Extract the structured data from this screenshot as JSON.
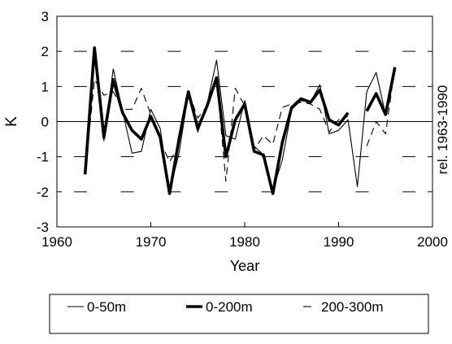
{
  "chart_data": {
    "type": "line",
    "xlabel": "Year",
    "ylabel": "K",
    "right_label": "rel. 1963-1990",
    "xlim": [
      1960,
      2000
    ],
    "ylim": [
      -3,
      3
    ],
    "x_ticks": [
      "1960",
      "1970",
      "1980",
      "1990",
      "2000"
    ],
    "y_ticks": [
      "-3",
      "-2",
      "-1",
      "0",
      "1",
      "2",
      "3"
    ],
    "grid_dash_levels": [
      -2,
      -1,
      1,
      2
    ],
    "zero_line": true,
    "legend_position": "bottom",
    "series": [
      {
        "name": "0-50m",
        "style": "thin",
        "points": [
          [
            1963,
            -1.5
          ],
          [
            1964,
            1.85
          ],
          [
            1965,
            -0.55
          ],
          [
            1966,
            1.5
          ],
          [
            1967,
            0.3
          ],
          [
            1968,
            -0.9
          ],
          [
            1969,
            -0.85
          ],
          [
            1970,
            0.35
          ],
          [
            1971,
            -0.2
          ],
          [
            1972,
            -2.0
          ],
          [
            1973,
            -0.9
          ],
          [
            1974,
            0.8
          ],
          [
            1975,
            -0.3
          ],
          [
            1976,
            0.5
          ],
          [
            1977,
            1.75
          ],
          [
            1978,
            -0.4
          ],
          [
            1979,
            -0.5
          ],
          [
            1980,
            0.6
          ],
          [
            1981,
            -0.7
          ],
          [
            1982,
            -0.95
          ],
          [
            1983,
            -1.95
          ],
          [
            1984,
            -1.1
          ],
          [
            1985,
            0.35
          ],
          [
            1986,
            0.6
          ],
          [
            1987,
            0.55
          ],
          [
            1988,
            1.05
          ],
          [
            1989,
            -0.35
          ],
          [
            1990,
            -0.25
          ],
          [
            1991,
            0.05
          ],
          [
            1992,
            -1.85
          ],
          [
            1993,
            0.85
          ],
          [
            1994,
            1.4
          ],
          [
            1995,
            0.2
          ],
          [
            1996,
            1.55
          ]
        ]
      },
      {
        "name": "0-200m",
        "style": "thick",
        "points": [
          [
            1963,
            -1.5
          ],
          [
            1964,
            2.1
          ],
          [
            1965,
            -0.45
          ],
          [
            1966,
            1.2
          ],
          [
            1967,
            0.25
          ],
          [
            1968,
            -0.25
          ],
          [
            1969,
            -0.5
          ],
          [
            1970,
            0.15
          ],
          [
            1971,
            -0.45
          ],
          [
            1972,
            -2.05
          ],
          [
            1973,
            -0.5
          ],
          [
            1974,
            0.85
          ],
          [
            1975,
            -0.2
          ],
          [
            1976,
            0.45
          ],
          [
            1977,
            1.25
          ],
          [
            1978,
            -1.0
          ],
          [
            1979,
            0.05
          ],
          [
            1980,
            0.5
          ],
          [
            1981,
            -0.85
          ],
          [
            1982,
            -0.95
          ],
          [
            1983,
            -2.05
          ],
          [
            1984,
            -0.6
          ],
          [
            1985,
            0.4
          ],
          [
            1986,
            0.65
          ],
          [
            1987,
            0.55
          ],
          [
            1988,
            0.9
          ],
          [
            1989,
            0.05
          ],
          [
            1990,
            -0.1
          ],
          [
            1991,
            0.25
          ],
          [
            null,
            null
          ],
          [
            1993,
            0.3
          ],
          [
            1994,
            0.8
          ],
          [
            1995,
            0.2
          ],
          [
            1996,
            1.55
          ]
        ]
      },
      {
        "name": "200-300m",
        "style": "dashed",
        "points": [
          [
            1963,
            -1.5
          ],
          [
            1964,
            1.2
          ],
          [
            1965,
            0.75
          ],
          [
            1966,
            0.85
          ],
          [
            1967,
            0.35
          ],
          [
            1968,
            0.35
          ],
          [
            1969,
            0.95
          ],
          [
            1970,
            0.2
          ],
          [
            1971,
            -0.55
          ],
          [
            1972,
            -1.15
          ],
          [
            1973,
            -0.65
          ],
          [
            1974,
            0.85
          ],
          [
            1975,
            0.1
          ],
          [
            1976,
            0.45
          ],
          [
            1977,
            1.25
          ],
          [
            1978,
            -1.7
          ],
          [
            1979,
            0.95
          ],
          [
            1980,
            0.45
          ],
          [
            1981,
            -0.8
          ],
          [
            1982,
            -0.4
          ],
          [
            1983,
            -0.65
          ],
          [
            1984,
            0.4
          ],
          [
            1985,
            0.5
          ],
          [
            1986,
            0.55
          ],
          [
            1987,
            0.5
          ],
          [
            1988,
            0.35
          ],
          [
            1989,
            -0.3
          ],
          [
            1990,
            0.05
          ],
          [
            1991,
            0.15
          ],
          [
            null,
            null
          ],
          [
            1993,
            -0.7
          ],
          [
            1994,
            0.0
          ],
          [
            1995,
            -0.35
          ],
          [
            1996,
            1.55
          ]
        ]
      }
    ]
  }
}
